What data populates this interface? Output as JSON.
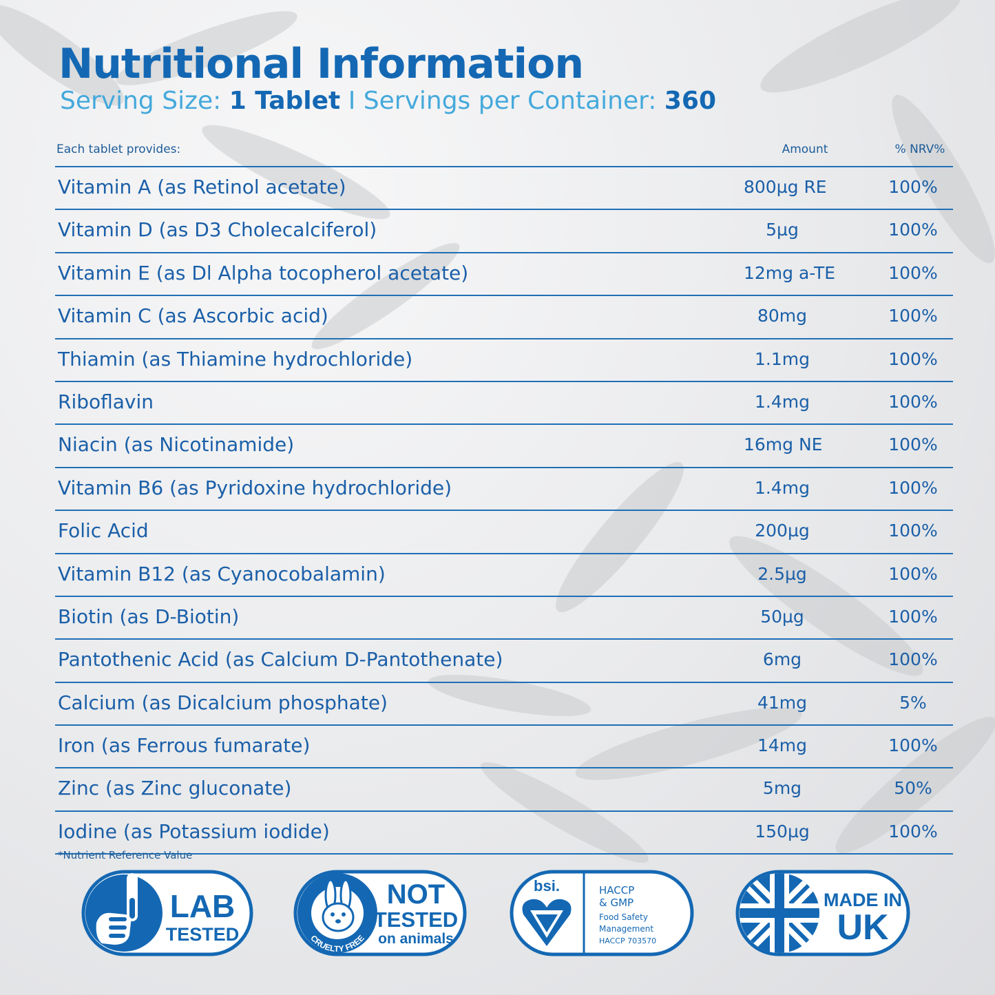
{
  "title": "Nutritional Information",
  "serving": {
    "size_label": "Serving Size:",
    "size_value": "1 Tablet",
    "separator": "I",
    "per_label": "Servings per Container:",
    "per_value": "360"
  },
  "table": {
    "headers": {
      "nutrient": "Each tablet provides:",
      "amount": "Amount",
      "nrv": "% NRV%"
    },
    "rows": [
      {
        "name": "Vitamin A (as Retinol acetate)",
        "amount": "800µg RE",
        "nrv": "100%"
      },
      {
        "name": "Vitamin D (as D3 Cholecalciferol)",
        "amount": "5µg",
        "nrv": "100%"
      },
      {
        "name": "Vitamin E (as Dl Alpha tocopherol acetate)",
        "amount": "12mg a-TE",
        "nrv": "100%"
      },
      {
        "name": "Vitamin C (as Ascorbic acid)",
        "amount": "80mg",
        "nrv": "100%"
      },
      {
        "name": "Thiamin (as Thiamine hydrochloride)",
        "amount": "1.1mg",
        "nrv": "100%"
      },
      {
        "name": "Riboflavin",
        "amount": "1.4mg",
        "nrv": "100%"
      },
      {
        "name": "Niacin (as Nicotinamide)",
        "amount": "16mg NE",
        "nrv": "100%"
      },
      {
        "name": "Vitamin B6 (as Pyridoxine hydrochloride)",
        "amount": "1.4mg",
        "nrv": "100%"
      },
      {
        "name": "Folic Acid",
        "amount": "200µg",
        "nrv": "100%"
      },
      {
        "name": "Vitamin B12 (as Cyanocobalamin)",
        "amount": "2.5µg",
        "nrv": "100%"
      },
      {
        "name": "Biotin (as D-Biotin)",
        "amount": "50µg",
        "nrv": "100%"
      },
      {
        "name": "Pantothenic Acid (as Calcium D-Pantothenate)",
        "amount": "6mg",
        "nrv": "100%"
      },
      {
        "name": "Calcium (as Dicalcium phosphate)",
        "amount": "41mg",
        "nrv": "5%"
      },
      {
        "name": "Iron (as Ferrous fumarate)",
        "amount": "14mg",
        "nrv": "100%"
      },
      {
        "name": "Zinc (as Zinc gluconate)",
        "amount": "5mg",
        "nrv": "50%"
      },
      {
        "name": "Iodine (as Potassium iodide)",
        "amount": "150µg",
        "nrv": "100%"
      }
    ]
  },
  "footnote": "*Nutrient Reference Value",
  "badges": {
    "lab": {
      "line1": "LAB",
      "line2": "TESTED",
      "icon": "hand-test-tube-icon"
    },
    "cruelty": {
      "line1": "NOT",
      "line2": "TESTED",
      "line3": "on animals",
      "ring_text": "CRUELTY FREE",
      "icon": "rabbit-icon"
    },
    "bsi": {
      "logo": "bsi.",
      "line1": "HACCP",
      "line2": "& GMP",
      "line3": "Food Safety",
      "line4": "Management",
      "line5": "HACCP 703570",
      "icon": "bsi-heart-icon"
    },
    "uk": {
      "line1": "MADE IN",
      "line2": "UK",
      "icon": "union-flag-icon"
    }
  },
  "colors": {
    "primary": "#1468b3",
    "accent": "#45a9dc",
    "rule": "#1e6fb5"
  }
}
